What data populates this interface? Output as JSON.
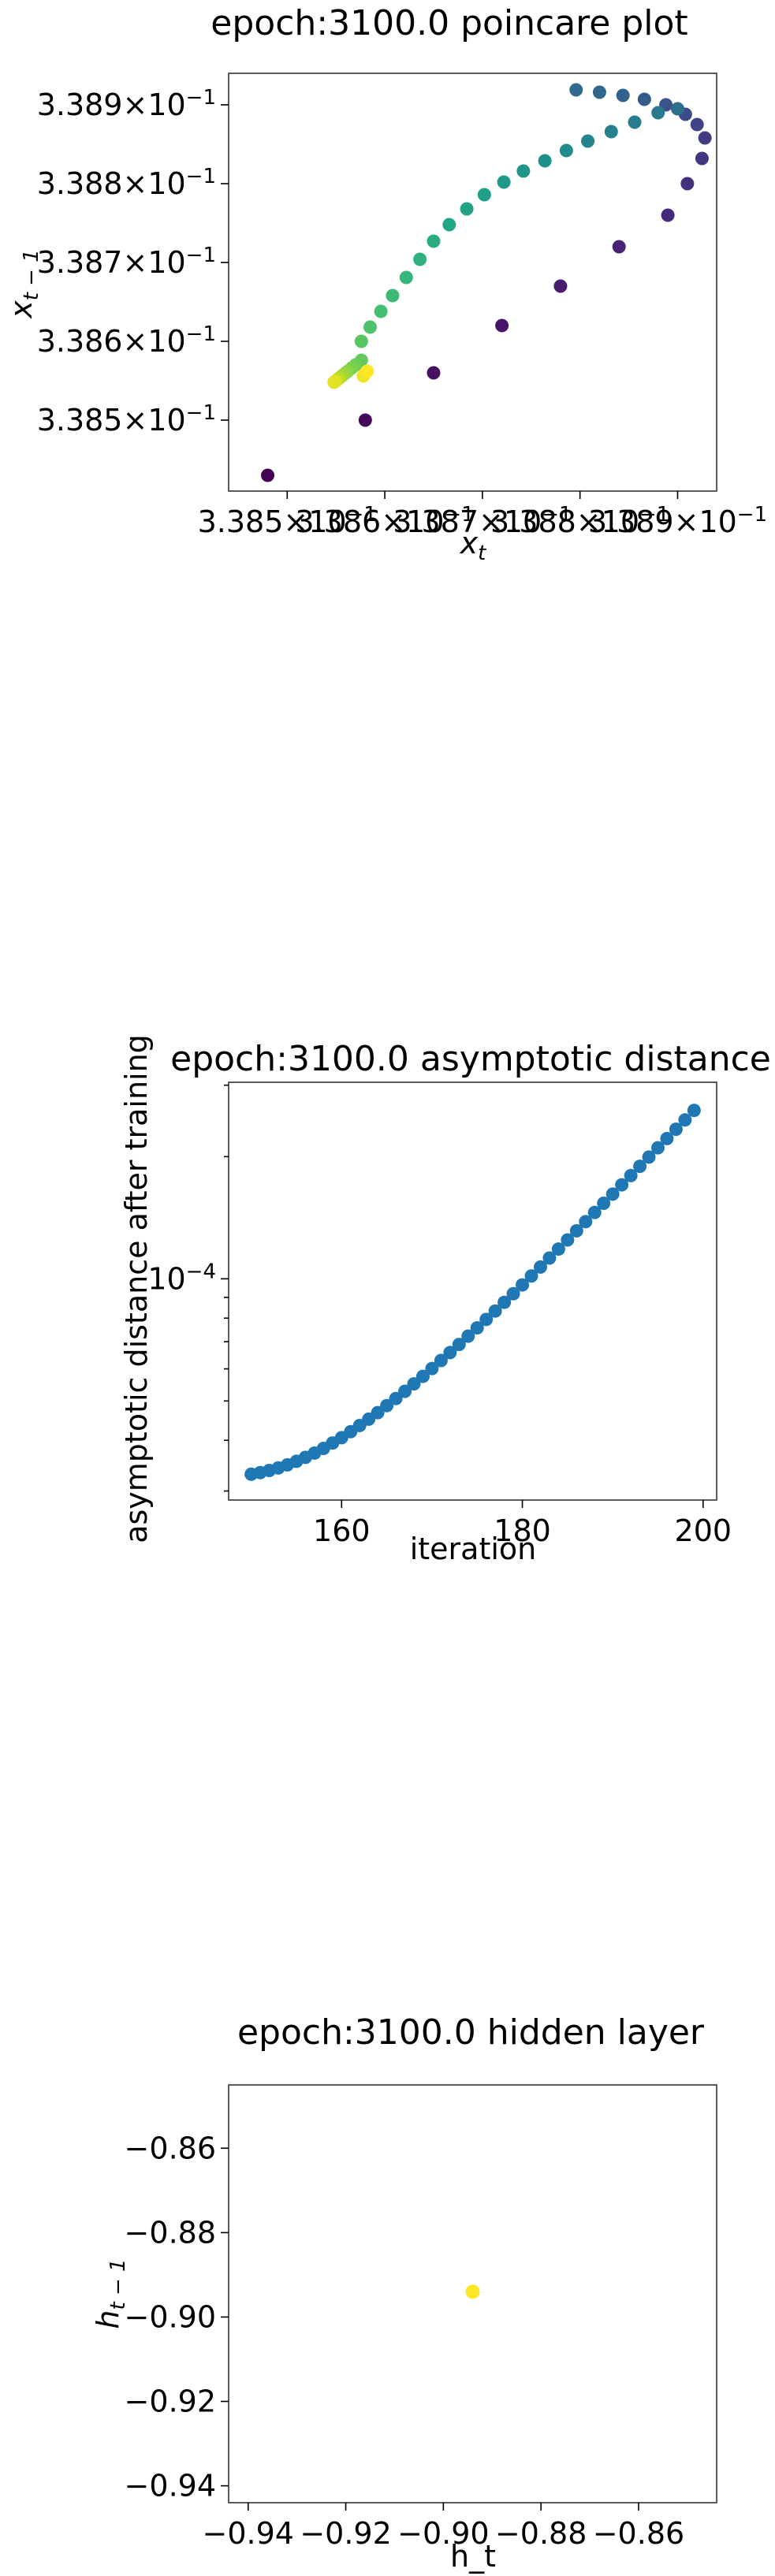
{
  "chart_data": [
    {
      "type": "scatter",
      "title": "epoch:3100.0 poincare plot",
      "xlabel": "x_t",
      "ylabel": "x_{t-1}",
      "xlim": [
        0.33844,
        0.33894
      ],
      "ylim": [
        0.33841,
        0.33894
      ],
      "x_ticks": [
        {
          "value": 0.3385,
          "label": "3.385 × 10^-1"
        },
        {
          "value": 0.3386,
          "label": "3.386 × 10^-1"
        },
        {
          "value": 0.3387,
          "label": "3.387 × 10^-1"
        },
        {
          "value": 0.3388,
          "label": "3.388 × 10^-1"
        },
        {
          "value": 0.3389,
          "label": "3.389 × 10^-1"
        }
      ],
      "y_ticks": [
        {
          "value": 0.3385,
          "label": "3.385 × 10^-1"
        },
        {
          "value": 0.3386,
          "label": "3.386 × 10^-1"
        },
        {
          "value": 0.3387,
          "label": "3.387 × 10^-1"
        },
        {
          "value": 0.3388,
          "label": "3.388 × 10^-1"
        },
        {
          "value": 0.3389,
          "label": "3.389 × 10^-1"
        }
      ],
      "colormap": "viridis",
      "points": [
        {
          "x": 0.33848,
          "y": 0.33843,
          "c": 0.0
        },
        {
          "x": 0.33858,
          "y": 0.3385,
          "c": 0.02
        },
        {
          "x": 0.33865,
          "y": 0.33856,
          "c": 0.04
        },
        {
          "x": 0.33872,
          "y": 0.33862,
          "c": 0.06
        },
        {
          "x": 0.33878,
          "y": 0.33867,
          "c": 0.08
        },
        {
          "x": 0.33884,
          "y": 0.33872,
          "c": 0.1
        },
        {
          "x": 0.33889,
          "y": 0.33876,
          "c": 0.12
        },
        {
          "x": 0.33891,
          "y": 0.3388,
          "c": 0.14
        },
        {
          "x": 0.338925,
          "y": 0.338832,
          "c": 0.16
        },
        {
          "x": 0.338928,
          "y": 0.338858,
          "c": 0.18
        },
        {
          "x": 0.33892,
          "y": 0.338875,
          "c": 0.2
        },
        {
          "x": 0.338908,
          "y": 0.338888,
          "c": 0.23
        },
        {
          "x": 0.338888,
          "y": 0.3389,
          "c": 0.26
        },
        {
          "x": 0.338866,
          "y": 0.338907,
          "c": 0.29
        },
        {
          "x": 0.338844,
          "y": 0.338912,
          "c": 0.31
        },
        {
          "x": 0.33882,
          "y": 0.338916,
          "c": 0.33
        },
        {
          "x": 0.338796,
          "y": 0.338919,
          "c": 0.35
        },
        {
          "x": 0.3389,
          "y": 0.338895,
          "c": 0.37
        },
        {
          "x": 0.33888,
          "y": 0.33889,
          "c": 0.4
        },
        {
          "x": 0.338856,
          "y": 0.338878,
          "c": 0.42
        },
        {
          "x": 0.338832,
          "y": 0.338866,
          "c": 0.44
        },
        {
          "x": 0.338808,
          "y": 0.338854,
          "c": 0.46
        },
        {
          "x": 0.338786,
          "y": 0.338842,
          "c": 0.48
        },
        {
          "x": 0.338764,
          "y": 0.338829,
          "c": 0.5
        },
        {
          "x": 0.338742,
          "y": 0.338816,
          "c": 0.52
        },
        {
          "x": 0.338722,
          "y": 0.338802,
          "c": 0.54
        },
        {
          "x": 0.338702,
          "y": 0.338786,
          "c": 0.56
        },
        {
          "x": 0.338684,
          "y": 0.338768,
          "c": 0.58
        },
        {
          "x": 0.338666,
          "y": 0.338748,
          "c": 0.6
        },
        {
          "x": 0.33865,
          "y": 0.338727,
          "c": 0.62
        },
        {
          "x": 0.338636,
          "y": 0.338704,
          "c": 0.64
        },
        {
          "x": 0.338622,
          "y": 0.338681,
          "c": 0.66
        },
        {
          "x": 0.338608,
          "y": 0.338658,
          "c": 0.68
        },
        {
          "x": 0.338596,
          "y": 0.338638,
          "c": 0.7
        },
        {
          "x": 0.338585,
          "y": 0.338618,
          "c": 0.72
        },
        {
          "x": 0.338576,
          "y": 0.3386,
          "c": 0.74
        },
        {
          "x": 0.338576,
          "y": 0.338576,
          "c": 0.76
        },
        {
          "x": 0.33857,
          "y": 0.33857,
          "c": 0.78
        },
        {
          "x": 0.338566,
          "y": 0.338566,
          "c": 0.8
        },
        {
          "x": 0.338562,
          "y": 0.338562,
          "c": 0.82
        },
        {
          "x": 0.338559,
          "y": 0.338559,
          "c": 0.84
        },
        {
          "x": 0.338556,
          "y": 0.338556,
          "c": 0.86
        },
        {
          "x": 0.338554,
          "y": 0.338554,
          "c": 0.88
        },
        {
          "x": 0.338552,
          "y": 0.338552,
          "c": 0.9
        },
        {
          "x": 0.33855,
          "y": 0.33855,
          "c": 0.92
        },
        {
          "x": 0.338549,
          "y": 0.338549,
          "c": 0.94
        },
        {
          "x": 0.338548,
          "y": 0.338548,
          "c": 0.96
        },
        {
          "x": 0.338578,
          "y": 0.338556,
          "c": 0.98
        },
        {
          "x": 0.338582,
          "y": 0.338562,
          "c": 1.0
        }
      ]
    },
    {
      "type": "scatter",
      "title": "epoch:3100.0 asymptotic distance",
      "xlabel": "iteration",
      "ylabel": "asymptotic distance after training",
      "xlim": [
        147.5,
        201.5
      ],
      "ylim_log": [
        2.85e-05,
        0.000305
      ],
      "yscale": "log",
      "x_ticks": [
        {
          "value": 160,
          "label": "160"
        },
        {
          "value": 180,
          "label": "180"
        },
        {
          "value": 200,
          "label": "200"
        }
      ],
      "y_ticks": [
        {
          "value": 0.0001,
          "label": "10^-4"
        }
      ],
      "color": "#1f77b4",
      "x": [
        150,
        151,
        152,
        153,
        154,
        155,
        156,
        157,
        158,
        159,
        160,
        161,
        162,
        163,
        164,
        165,
        166,
        167,
        168,
        169,
        170,
        171,
        172,
        173,
        174,
        175,
        176,
        177,
        178,
        179,
        180,
        181,
        182,
        183,
        184,
        185,
        186,
        187,
        188,
        189,
        190,
        191,
        192,
        193,
        194,
        195,
        196,
        197,
        198,
        199
      ],
      "y": [
        3.3e-05,
        3.33e-05,
        3.37e-05,
        3.42e-05,
        3.48e-05,
        3.55e-05,
        3.63e-05,
        3.72e-05,
        3.82e-05,
        3.94e-05,
        4.06e-05,
        4.2e-05,
        4.35e-05,
        4.51e-05,
        4.68e-05,
        4.87e-05,
        5.07e-05,
        5.28e-05,
        5.51e-05,
        5.75e-05,
        6.01e-05,
        6.29e-05,
        6.58e-05,
        6.89e-05,
        7.22e-05,
        7.57e-05,
        7.94e-05,
        8.33e-05,
        8.75e-05,
        9.19e-05,
        9.66e-05,
        0.0001016,
        0.0001069,
        0.0001125,
        0.0001184,
        0.0001247,
        0.0001313,
        0.0001383,
        0.0001457,
        0.0001535,
        0.0001617,
        0.0001704,
        0.0001796,
        0.0001893,
        0.0001995,
        0.0002103,
        0.0002216,
        0.0002336,
        0.0002463,
        0.00026
      ]
    },
    {
      "type": "scatter",
      "title": "epoch:3100.0 hidden layer",
      "xlabel": "h_t",
      "ylabel": "h_{t-1}",
      "xlim": [
        -0.944,
        -0.844
      ],
      "ylim": [
        -0.944,
        -0.845
      ],
      "x_ticks": [
        {
          "value": -0.94,
          "label": "−0.94"
        },
        {
          "value": -0.92,
          "label": "−0.92"
        },
        {
          "value": -0.9,
          "label": "−0.90"
        },
        {
          "value": -0.88,
          "label": "−0.88"
        },
        {
          "value": -0.86,
          "label": "−0.86"
        }
      ],
      "y_ticks": [
        {
          "value": -0.86,
          "label": "−0.86"
        },
        {
          "value": -0.88,
          "label": "−0.88"
        },
        {
          "value": -0.9,
          "label": "−0.90"
        },
        {
          "value": -0.92,
          "label": "−0.92"
        },
        {
          "value": -0.94,
          "label": "−0.94"
        }
      ],
      "color": "#fde725",
      "points": [
        {
          "x": -0.894,
          "y": -0.894
        }
      ]
    }
  ]
}
